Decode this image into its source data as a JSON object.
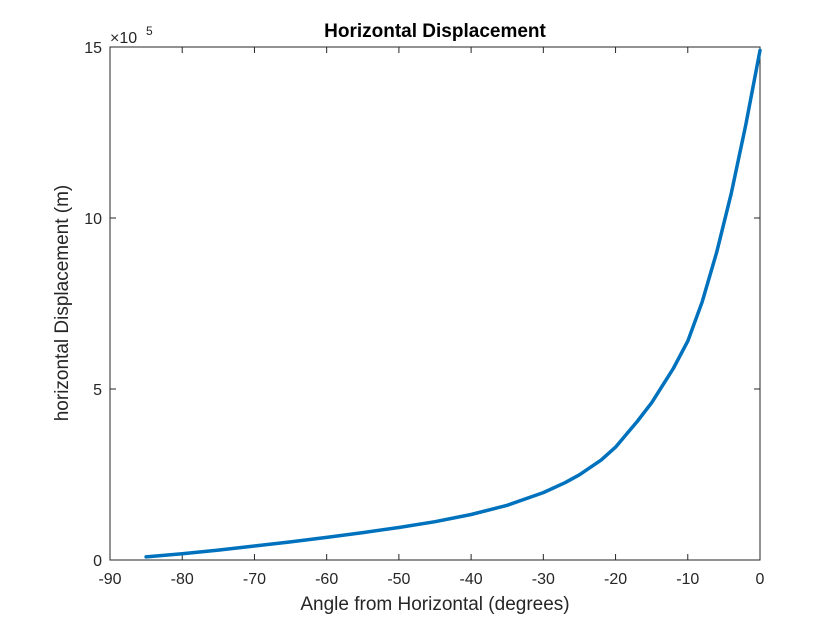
{
  "chart_data": {
    "type": "line",
    "title": "Horizontal Displacement",
    "xlabel": "Angle from Horizontal (degrees)",
    "ylabel": "horizontal Displacement (m)",
    "y_multiplier_base": "×10",
    "y_multiplier_exp": "5",
    "xlim": [
      -90,
      0
    ],
    "ylim": [
      0,
      15
    ],
    "xticks": [
      -90,
      -80,
      -70,
      -60,
      -50,
      -40,
      -30,
      -20,
      -10,
      0
    ],
    "yticks": [
      0,
      5,
      10,
      15
    ],
    "grid": false,
    "line_color": "#0072BD",
    "series": [
      {
        "x": [
          -85,
          -80,
          -75,
          -70,
          -65,
          -60,
          -55,
          -50,
          -45,
          -40,
          -35,
          -30,
          -27,
          -25,
          -22,
          -20,
          -18,
          -17,
          -15,
          -12,
          -10,
          -8,
          -6,
          -4,
          -2,
          0
        ],
        "values": [
          0.09,
          0.18,
          0.29,
          0.41,
          0.53,
          0.66,
          0.8,
          0.95,
          1.12,
          1.33,
          1.6,
          1.97,
          2.26,
          2.49,
          2.92,
          3.3,
          3.8,
          4.05,
          4.6,
          5.6,
          6.4,
          7.55,
          9.0,
          10.7,
          12.7,
          14.9
        ]
      }
    ]
  }
}
